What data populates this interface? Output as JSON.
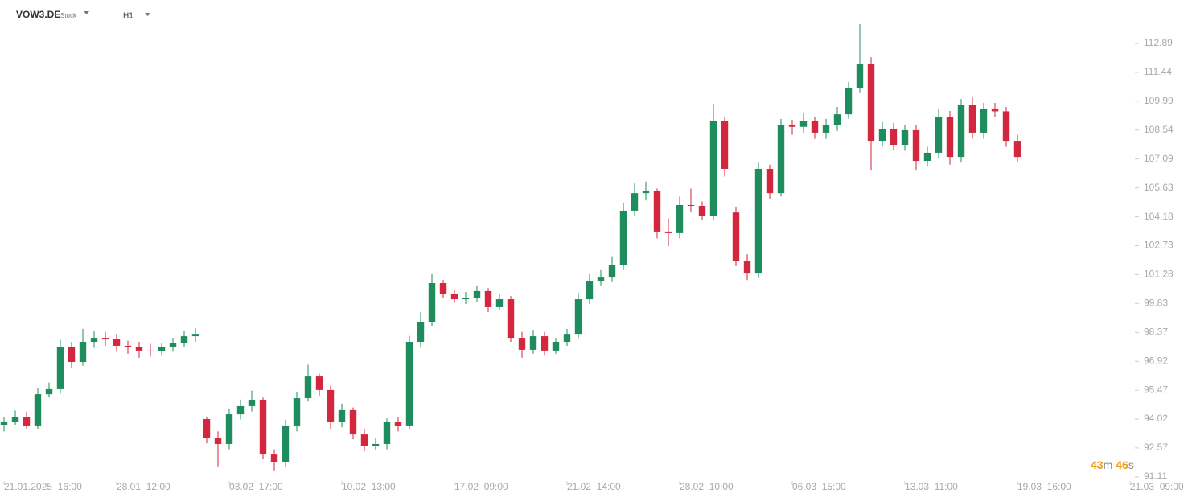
{
  "header": {
    "symbol": "VOW3.DE",
    "asset_type": "Stock",
    "timeframe": "H1"
  },
  "countdown": {
    "minutes": 43,
    "minutes_unit": "m",
    "seconds": 46,
    "seconds_unit": "s"
  },
  "chart_data": {
    "type": "candlestick",
    "up_color": "#1e8c5c",
    "down_color": "#d3263f",
    "open": [
      93.7,
      93.86,
      94.14,
      93.66,
      95.27,
      95.52,
      97.62,
      96.89,
      97.9,
      98.1,
      98.02,
      97.7,
      97.62,
      97.46,
      97.42,
      97.62,
      97.86,
      98.18,
      94.02,
      93.05,
      92.77,
      94.26,
      94.67,
      94.95,
      92.24,
      91.84,
      93.66,
      95.07,
      96.16,
      95.48,
      93.86,
      94.47,
      93.25,
      92.65,
      92.77,
      93.86,
      93.66,
      97.9,
      98.91,
      100.85,
      100.32,
      100.04,
      100.12,
      100.45,
      99.64,
      100.04,
      98.1,
      97.5,
      98.18,
      97.46,
      97.9,
      98.3,
      100.04,
      100.93,
      101.13,
      101.74,
      104.49,
      105.37,
      105.46,
      103.44,
      103.36,
      104.77,
      104.73,
      104.24,
      109.01,
      104.4,
      101.94,
      101.33,
      106.59,
      105.37,
      108.81,
      108.7,
      109.01,
      108.41,
      108.81,
      109.33,
      110.63,
      111.84,
      108.0,
      108.61,
      107.8,
      108.53,
      106.99,
      107.4,
      109.21,
      107.19,
      109.82,
      108.41,
      109.62,
      109.48,
      108.0
    ],
    "high": [
      94.1,
      94.45,
      94.4,
      95.55,
      95.85,
      98.0,
      97.9,
      98.55,
      98.45,
      98.4,
      98.3,
      97.95,
      97.9,
      97.8,
      97.85,
      98.1,
      98.45,
      98.6,
      94.15,
      93.4,
      94.55,
      95.0,
      95.45,
      95.1,
      92.5,
      94.0,
      95.4,
      96.75,
      96.3,
      95.7,
      94.8,
      94.6,
      93.5,
      93.05,
      94.05,
      94.1,
      98.2,
      99.4,
      101.3,
      101.0,
      100.5,
      100.4,
      100.7,
      100.6,
      100.3,
      100.2,
      98.4,
      98.5,
      98.4,
      98.1,
      98.55,
      100.35,
      101.3,
      101.5,
      102.2,
      104.9,
      105.9,
      105.95,
      105.6,
      104.1,
      105.2,
      105.6,
      104.95,
      109.85,
      109.2,
      104.7,
      102.3,
      106.9,
      106.8,
      109.1,
      109.05,
      109.4,
      109.2,
      109.1,
      109.7,
      110.95,
      113.86,
      112.2,
      108.95,
      108.9,
      108.8,
      108.8,
      107.7,
      109.6,
      109.5,
      110.1,
      110.2,
      109.9,
      109.9,
      109.7,
      108.3
    ],
    "low": [
      93.4,
      93.7,
      93.5,
      93.5,
      95.1,
      95.3,
      96.6,
      96.7,
      97.6,
      97.7,
      97.4,
      97.3,
      97.1,
      97.15,
      97.2,
      97.4,
      97.65,
      97.9,
      92.8,
      91.6,
      92.5,
      94.0,
      94.4,
      92.0,
      91.4,
      91.6,
      93.4,
      94.9,
      95.2,
      93.5,
      93.6,
      93.0,
      92.4,
      92.45,
      92.5,
      93.4,
      93.5,
      97.6,
      98.7,
      100.1,
      99.85,
      99.8,
      99.9,
      99.4,
      99.5,
      97.9,
      97.1,
      97.3,
      97.2,
      97.3,
      97.7,
      98.1,
      99.8,
      100.7,
      100.9,
      101.5,
      104.2,
      105.0,
      103.1,
      102.7,
      103.1,
      104.4,
      104.0,
      104.0,
      106.2,
      101.7,
      101.0,
      101.1,
      105.1,
      105.2,
      108.3,
      108.4,
      108.1,
      108.1,
      108.5,
      109.1,
      110.4,
      106.5,
      107.7,
      107.5,
      107.5,
      106.5,
      106.7,
      107.1,
      106.8,
      106.9,
      108.1,
      108.1,
      109.2,
      107.7,
      106.95
    ],
    "close": [
      93.86,
      94.14,
      93.66,
      95.27,
      95.52,
      97.62,
      96.89,
      97.9,
      98.1,
      98.02,
      97.7,
      97.62,
      97.46,
      97.42,
      97.62,
      97.86,
      98.18,
      98.3,
      93.05,
      92.77,
      94.26,
      94.67,
      94.95,
      92.24,
      91.84,
      93.66,
      95.07,
      96.16,
      95.48,
      93.86,
      94.47,
      93.25,
      92.65,
      92.77,
      93.86,
      93.66,
      97.9,
      98.91,
      100.85,
      100.32,
      100.04,
      100.12,
      100.45,
      99.64,
      100.04,
      98.1,
      97.5,
      98.18,
      97.46,
      97.9,
      98.3,
      100.04,
      100.93,
      101.13,
      101.74,
      104.49,
      105.37,
      105.46,
      103.44,
      103.36,
      104.77,
      104.73,
      104.24,
      109.01,
      106.59,
      101.94,
      101.33,
      106.59,
      105.37,
      108.81,
      108.7,
      109.01,
      108.41,
      108.81,
      109.33,
      110.63,
      111.84,
      108.0,
      108.61,
      107.8,
      108.53,
      106.99,
      107.4,
      109.21,
      107.19,
      109.82,
      108.41,
      109.62,
      109.48,
      108.0,
      107.19
    ],
    "ylim": [
      90.91,
      114.67
    ],
    "yticks": [
      112.89,
      111.44,
      109.99,
      108.54,
      107.09,
      105.63,
      104.18,
      102.73,
      101.28,
      99.83,
      98.37,
      96.92,
      95.47,
      94.02,
      92.57,
      91.11
    ],
    "xlim": [
      0,
      100
    ],
    "xticks": [
      {
        "value": 0,
        "label": "21.01.2025  16:00"
      },
      {
        "value": 10,
        "label": "28.01  12:00"
      },
      {
        "value": 20,
        "label": "03.02  17:00"
      },
      {
        "value": 30,
        "label": "10.02  13:00"
      },
      {
        "value": 40,
        "label": "17.02  09:00"
      },
      {
        "value": 50,
        "label": "21.02  14:00"
      },
      {
        "value": 60,
        "label": "28.02  10:00"
      },
      {
        "value": 70,
        "label": "06.03  15:00"
      },
      {
        "value": 80,
        "label": "13.03  11:00"
      },
      {
        "value": 90,
        "label": "19.03  16:00"
      },
      {
        "value": 100,
        "label": "21.03  09:00"
      }
    ]
  }
}
